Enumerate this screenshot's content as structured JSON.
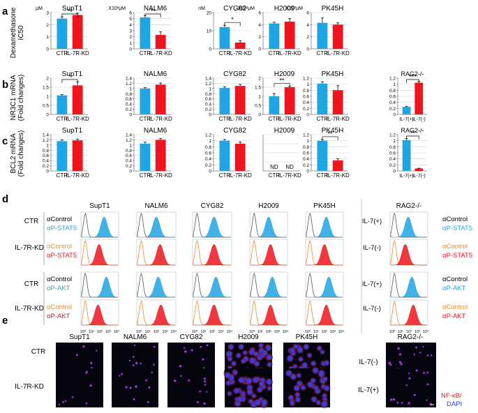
{
  "panels": {
    "a": {
      "letter": "a",
      "ylabel": [
        "Dexamethasone",
        "IC50"
      ]
    },
    "b": {
      "letter": "b",
      "ylabel": [
        "NR3C1 mRNA",
        "(Fold changes)"
      ]
    },
    "c": {
      "letter": "c",
      "ylabel": [
        "BCL2 mRNA",
        "(Fold changes)"
      ]
    },
    "d": {
      "letter": "d"
    },
    "e": {
      "letter": "e"
    }
  },
  "colors": {
    "ctr": "#1fa4e4",
    "kd": "#f0141e",
    "axis": "#7a7a7a",
    "grid": "#d4d4d4"
  },
  "chart_data": [
    {
      "type": "bar",
      "id": "a_SupT1",
      "title": "SupT1",
      "unit": "μM",
      "categories": [
        "CTR",
        "IL-7R-KD"
      ],
      "values": [
        2.5,
        2.8
      ],
      "errors": [
        0.15,
        0.15
      ],
      "ylim": [
        0,
        3
      ],
      "yticks": [
        "0",
        "1",
        "2",
        "3"
      ],
      "significance": "**"
    },
    {
      "type": "bar",
      "id": "a_NALM6",
      "title": "NALM6",
      "unit": "X10²μM",
      "categories": [
        "CTR",
        "IL-7R-KD"
      ],
      "values": [
        5.2,
        2.3
      ],
      "errors": [
        0.3,
        0.5
      ],
      "ylim": [
        0,
        6
      ],
      "yticks": [
        "0",
        "1",
        "2",
        "3",
        "4",
        "5",
        "6"
      ],
      "significance": "**"
    },
    {
      "type": "bar",
      "id": "a_CYG82",
      "title": "CYG82",
      "unit": "nM",
      "categories": [
        "CTR",
        "IL-7R-KD"
      ],
      "values": [
        12,
        3.5
      ],
      "errors": [
        1.0,
        1.0
      ],
      "ylim": [
        0,
        20
      ],
      "yticks": [
        "0",
        "10",
        "20"
      ],
      "significance": "*"
    },
    {
      "type": "bar",
      "id": "a_H2009",
      "title": "H2009",
      "unit": "X10²μM",
      "categories": [
        "CTR",
        "IL-7R-KD"
      ],
      "values": [
        4.2,
        4.5
      ],
      "errors": [
        0.2,
        0.5
      ],
      "ylim": [
        0,
        6
      ],
      "yticks": [
        "0",
        "2",
        "4",
        "6"
      ],
      "significance": ""
    },
    {
      "type": "bar",
      "id": "a_PK45H",
      "title": "PK45H",
      "unit": "X10²μM",
      "categories": [
        "CTR",
        "IL-7R-KD"
      ],
      "values": [
        4.3,
        4.0
      ],
      "errors": [
        0.8,
        0.3
      ],
      "ylim": [
        0,
        6
      ],
      "yticks": [
        "0",
        "2",
        "4",
        "6"
      ],
      "significance": ""
    },
    {
      "type": "bar",
      "id": "b_SupT1",
      "title": "SupT1",
      "categories": [
        "CTR",
        "IL-7R-KD"
      ],
      "values": [
        1.05,
        1.6
      ],
      "errors": [
        0.04,
        0.2
      ],
      "ylim": [
        0,
        2
      ],
      "yticks": [
        "0",
        "0.5",
        "1",
        "1.5",
        "2"
      ],
      "significance": "*"
    },
    {
      "type": "bar",
      "id": "b_NALM6",
      "title": "NALM6",
      "categories": [
        "CTR",
        "IL-7R-KD"
      ],
      "values": [
        1.0,
        1.15
      ],
      "errors": [
        0.03,
        0.06
      ],
      "ylim": [
        0,
        1.4
      ],
      "yticks": [
        "0",
        "0.2",
        "0.4",
        "0.6",
        "0.8",
        "1",
        "1.2",
        "1.4"
      ],
      "significance": ""
    },
    {
      "type": "bar",
      "id": "b_CYG82",
      "title": "CYG82",
      "categories": [
        "CTR",
        "IL-7R-KD"
      ],
      "values": [
        1.02,
        1.1
      ],
      "errors": [
        0.05,
        0.06
      ],
      "ylim": [
        0,
        1.4
      ],
      "yticks": [
        "0",
        "0.2",
        "0.4",
        "0.6",
        "0.8",
        "1",
        "1.2",
        "1.4"
      ],
      "significance": ""
    },
    {
      "type": "bar",
      "id": "b_H2009",
      "title": "H2009",
      "categories": [
        "CTR",
        "IL-7R-KD"
      ],
      "values": [
        1.0,
        1.5
      ],
      "errors": [
        0.15,
        0.05
      ],
      "ylim": [
        0,
        2
      ],
      "yticks": [
        "0",
        "0.5",
        "1",
        "1.5",
        "2"
      ],
      "significance": "**"
    },
    {
      "type": "bar",
      "id": "b_PK45H",
      "title": "PK45H",
      "categories": [
        "CTR",
        "IL-7R-KD"
      ],
      "values": [
        1.02,
        0.8
      ],
      "errors": [
        0.06,
        0.15
      ],
      "ylim": [
        0,
        1.2
      ],
      "yticks": [
        "0",
        "0.2",
        "0.4",
        "0.6",
        "0.8",
        "1",
        "1.2"
      ],
      "significance": ""
    },
    {
      "type": "bar",
      "id": "b_RAG2",
      "title": "RAG2-/-",
      "categories": [
        "IL-7(+)",
        "IL-7(-)"
      ],
      "values": [
        0.25,
        1.05
      ],
      "errors": [
        0.02,
        0.05
      ],
      "ylim": [
        0,
        1.2
      ],
      "yticks": [
        "0",
        "0.2",
        "0.4",
        "0.6",
        "0.8",
        "1",
        "1.2"
      ],
      "significance": "***"
    },
    {
      "type": "bar",
      "id": "c_SupT1",
      "title": "SupT1",
      "categories": [
        "CTR",
        "IL-7R-KD"
      ],
      "values": [
        1.15,
        1.18
      ],
      "errors": [
        0.05,
        0.05
      ],
      "ylim": [
        0,
        1.4
      ],
      "yticks": [
        "0",
        "0.2",
        "0.4",
        "0.6",
        "0.8",
        "1",
        "1.2",
        "1.4"
      ],
      "significance": ""
    },
    {
      "type": "bar",
      "id": "c_NALM6",
      "title": "NALM6",
      "categories": [
        "CTR",
        "IL-7R-KD"
      ],
      "values": [
        1.05,
        1.2
      ],
      "errors": [
        0.06,
        0.05
      ],
      "ylim": [
        0,
        1.4
      ],
      "yticks": [
        "0",
        "0.2",
        "0.4",
        "0.6",
        "0.8",
        "1",
        "1.2",
        "1.4"
      ],
      "significance": ""
    },
    {
      "type": "bar",
      "id": "c_CYG82",
      "title": "CYG82",
      "categories": [
        "CTR",
        "IL-7R-KD"
      ],
      "values": [
        1.0,
        0.9
      ],
      "errors": [
        0.04,
        0.06
      ],
      "ylim": [
        0,
        1.2
      ],
      "yticks": [
        "0",
        "0.2",
        "0.4",
        "0.6",
        "0.8",
        "1",
        "1.2"
      ],
      "significance": ""
    },
    {
      "type": "bar",
      "id": "c_H2009",
      "title": "H2009",
      "categories": [
        "CTR",
        "IL-7R-KD"
      ],
      "values": [
        0,
        0
      ],
      "errors": [
        0,
        0
      ],
      "ylim": [
        0,
        1.2
      ],
      "yticks": [],
      "significance": "",
      "not_detected": "ND"
    },
    {
      "type": "bar",
      "id": "c_PK45H",
      "title": "PK45H",
      "categories": [
        "CTR",
        "IL-7R-KD"
      ],
      "values": [
        1.0,
        0.35
      ],
      "errors": [
        0.04,
        0.05
      ],
      "ylim": [
        0,
        1.2
      ],
      "yticks": [
        "0",
        "0.2",
        "0.4",
        "0.6",
        "0.8",
        "1",
        "1.2"
      ],
      "significance": "**"
    },
    {
      "type": "bar",
      "id": "c_RAG2",
      "title": "RAG2-/-",
      "categories": [
        "IL-7(+)",
        "IL-7(-)"
      ],
      "values": [
        1.02,
        0.08
      ],
      "errors": [
        0.05,
        0.01
      ],
      "ylim": [
        0,
        1.2
      ],
      "yticks": [
        "0",
        "0.2",
        "0.4",
        "0.6",
        "0.8",
        "1",
        "1.2"
      ],
      "significance": "**"
    }
  ],
  "flow": {
    "cell_lines": [
      "SupT1",
      "NALM6",
      "CYG82",
      "H2009",
      "PK45H"
    ],
    "rag_title": "RAG2-/-",
    "xticks": [
      "10⁰",
      "10¹",
      "10²",
      "10³",
      "10⁴"
    ],
    "left_groups": [
      "CTR",
      "IL-7R-KD",
      "CTR",
      "IL-7R-KD"
    ],
    "rag_groups": [
      "IL-7(+)",
      "IL-7(-)",
      "IL-7(+)",
      "IL-7(-)"
    ],
    "row_labels": [
      {
        "control": "αControl",
        "target": "αP-STAT5"
      },
      {
        "control": "αControl",
        "target": "αP-STAT5"
      },
      {
        "control": "αControl",
        "target": "αP-AKT"
      },
      {
        "control": "αControl",
        "target": "αP-AKT"
      }
    ],
    "peaks": {
      "SupT1": [
        0.62,
        0.48,
        0.68,
        0.45
      ],
      "NALM6": [
        0.5,
        0.6,
        0.55,
        0.62
      ],
      "CYG82": [
        0.55,
        0.55,
        0.6,
        0.55
      ],
      "H2009": [
        0.5,
        0.55,
        0.6,
        0.55
      ],
      "PK45H": [
        0.55,
        0.5,
        0.62,
        0.55
      ],
      "RAG2": [
        0.48,
        0.4,
        0.58,
        0.62
      ]
    }
  },
  "microscopy": {
    "cell_lines": [
      "SupT1",
      "NALM6",
      "CYG82",
      "H2009",
      "PK45H"
    ],
    "rag_title": "RAG2-/-",
    "row_labels": [
      "CTR",
      "IL-7R-KD"
    ],
    "rag_row_labels": [
      "IL-7(-)",
      "IL-7(+)"
    ],
    "legend_nfkb": "NF-κB/",
    "legend_dapi": "DAPI",
    "cell_density": {
      "SupT1": 8,
      "NALM6": 10,
      "CYG82": 10,
      "H2009": 40,
      "PK45H": 30,
      "RAG2": 16
    }
  }
}
